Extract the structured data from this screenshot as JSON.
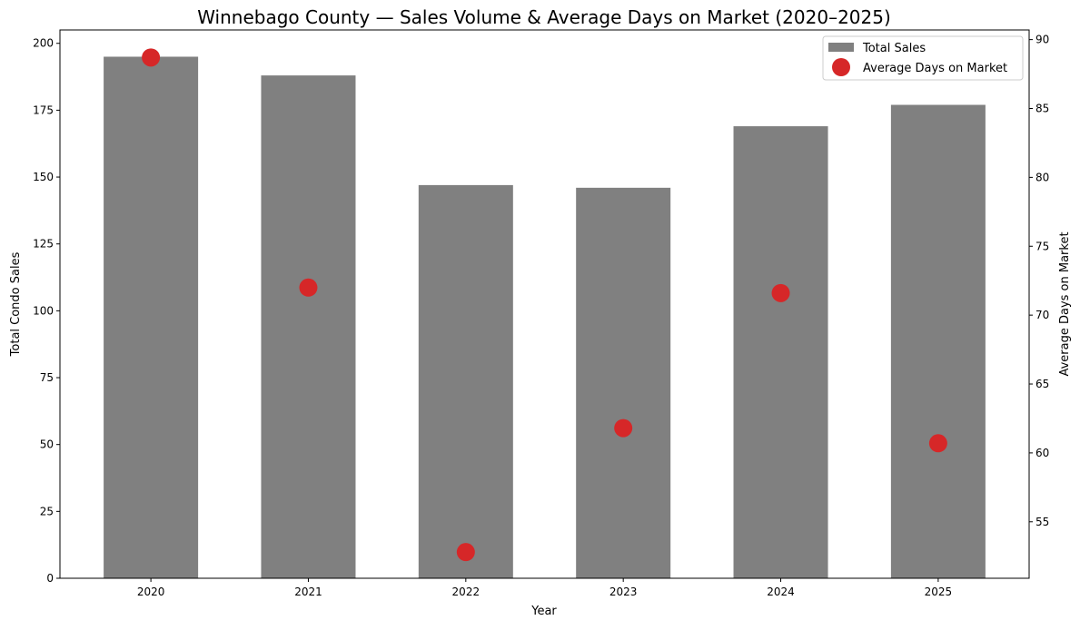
{
  "chart_data": {
    "type": "bar",
    "title": "Winnebago County — Sales Volume & Average Days on Market (2020–2025)",
    "xlabel": "Year",
    "ylabel": "Total Condo Sales",
    "y2label": "Average Days on Market",
    "categories": [
      "2020",
      "2021",
      "2022",
      "2023",
      "2024",
      "2025"
    ],
    "series": [
      {
        "name": "Total Sales",
        "type": "bar",
        "axis": "left",
        "color": "#808080",
        "values": [
          195,
          188,
          147,
          146,
          169,
          177
        ]
      },
      {
        "name": "Average Days on Market",
        "type": "scatter",
        "axis": "right",
        "color": "#d62728",
        "values": [
          88.7,
          72.0,
          52.8,
          61.8,
          71.6,
          60.7
        ]
      }
    ],
    "ylim": [
      0,
      205
    ],
    "y2lim": [
      50.9,
      90.7
    ],
    "yticks": [
      0,
      25,
      50,
      75,
      100,
      125,
      150,
      175,
      200
    ],
    "y2ticks": [
      55,
      60,
      65,
      70,
      75,
      80,
      85,
      90
    ],
    "grid": false,
    "legend": {
      "placement": "top-right",
      "entries": [
        "Total Sales",
        "Average Days on Market"
      ]
    }
  }
}
